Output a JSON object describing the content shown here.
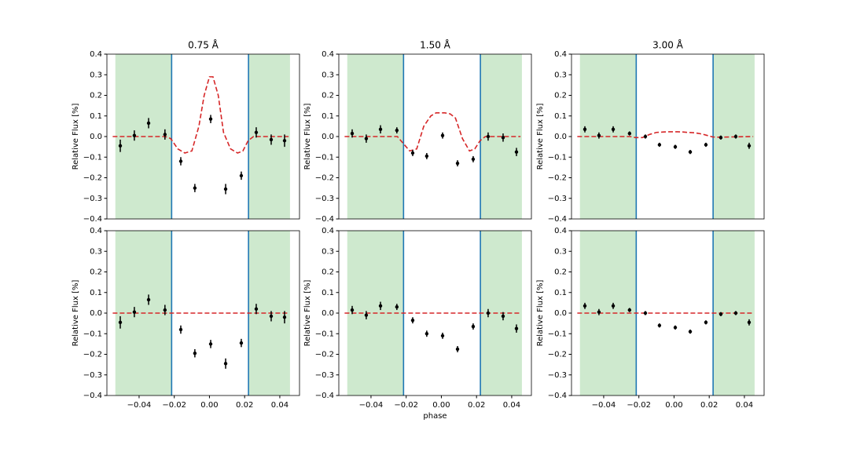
{
  "chart_data": [
    {
      "type": "errorbar",
      "title": "0.75 Å",
      "ylabel": "Relative Flux [%]",
      "xlim": [
        -0.0583,
        0.0512
      ],
      "ylim": [
        -0.4,
        0.4
      ],
      "yticks": [
        {
          "value": -0.4,
          "label": "−0.4"
        },
        {
          "value": -0.3,
          "label": "−0.3"
        },
        {
          "value": -0.2,
          "label": "−0.2"
        },
        {
          "value": -0.1,
          "label": "−0.1"
        },
        {
          "value": 0,
          "label": "0.0"
        },
        0.1,
        0.2,
        0.3,
        0.4
      ],
      "regions": [
        [
          -0.0535,
          -0.0215
        ],
        [
          0.0222,
          0.0458
        ]
      ],
      "region_color": "#2ca02c",
      "vlines": [
        -0.0215,
        0.0222
      ],
      "vline_color": "#1f77b4",
      "points": {
        "color": "#000000",
        "x": [
          -0.0507,
          -0.0427,
          -0.0346,
          -0.0253,
          -0.0163,
          -0.0083,
          0.0007,
          0.0092,
          0.0181,
          0.0266,
          0.0351,
          0.0427
        ],
        "values": [
          -0.045,
          0.005,
          0.065,
          0.01,
          -0.12,
          -0.25,
          0.085,
          -0.255,
          -0.19,
          0.02,
          -0.015,
          -0.02
        ],
        "errors": [
          0.03,
          0.025,
          0.025,
          0.025,
          0.02,
          0.02,
          0.02,
          0.025,
          0.02,
          0.025,
          0.025,
          0.03
        ]
      },
      "model": {
        "color": "#d62728",
        "x": [
          -0.055,
          -0.025,
          -0.022,
          -0.018,
          -0.014,
          -0.01,
          -0.006,
          -0.003,
          0.0,
          0.002,
          0.005,
          0.008,
          0.012,
          0.016,
          0.019,
          0.022,
          0.025,
          0.045
        ],
        "values": [
          0,
          0,
          -0.01,
          -0.06,
          -0.08,
          -0.07,
          0.05,
          0.2,
          0.29,
          0.29,
          0.2,
          0.02,
          -0.06,
          -0.08,
          -0.07,
          -0.02,
          0,
          0
        ]
      }
    },
    {
      "type": "errorbar",
      "title": "1.50 Å",
      "ylabel": "Relative Flux [%]",
      "xlim": [
        -0.0583,
        0.0512
      ],
      "ylim": [
        -0.4,
        0.4
      ],
      "yticks": [
        {
          "value": -0.4,
          "label": "−0.4"
        },
        {
          "value": -0.3,
          "label": "−0.3"
        },
        {
          "value": -0.2,
          "label": "−0.2"
        },
        {
          "value": -0.1,
          "label": "−0.1"
        },
        {
          "value": 0,
          "label": "0.0"
        },
        0.1,
        0.2,
        0.3,
        0.4
      ],
      "regions": [
        [
          -0.0535,
          -0.0215
        ],
        [
          0.0222,
          0.0458
        ]
      ],
      "region_color": "#2ca02c",
      "vlines": [
        -0.0215,
        0.0222
      ],
      "vline_color": "#1f77b4",
      "points": {
        "color": "#000000",
        "x": [
          -0.0507,
          -0.0427,
          -0.0346,
          -0.0253,
          -0.0163,
          -0.0083,
          0.0007,
          0.0092,
          0.0181,
          0.0266,
          0.0351,
          0.0427
        ],
        "values": [
          0.015,
          -0.01,
          0.035,
          0.03,
          -0.08,
          -0.095,
          0.005,
          -0.13,
          -0.11,
          0.0,
          -0.005,
          -0.075
        ],
        "errors": [
          0.02,
          0.02,
          0.02,
          0.015,
          0.015,
          0.015,
          0.015,
          0.015,
          0.015,
          0.02,
          0.02,
          0.02
        ]
      },
      "model": {
        "color": "#d62728",
        "x": [
          -0.055,
          -0.025,
          -0.022,
          -0.018,
          -0.014,
          -0.01,
          -0.006,
          -0.003,
          0.0,
          0.002,
          0.005,
          0.008,
          0.012,
          0.016,
          0.019,
          0.022,
          0.025,
          0.045
        ],
        "values": [
          0,
          0,
          -0.03,
          -0.07,
          -0.06,
          0.05,
          0.1,
          0.115,
          0.115,
          0.115,
          0.11,
          0.09,
          -0.01,
          -0.07,
          -0.06,
          -0.02,
          0,
          0
        ]
      }
    },
    {
      "type": "errorbar",
      "title": "3.00 Å",
      "ylabel": "Relative Flux [%]",
      "xlim": [
        -0.0583,
        0.0512
      ],
      "ylim": [
        -0.4,
        0.4
      ],
      "yticks": [
        {
          "value": -0.4,
          "label": "−0.4"
        },
        {
          "value": -0.3,
          "label": "−0.3"
        },
        {
          "value": -0.2,
          "label": "−0.2"
        },
        {
          "value": -0.1,
          "label": "−0.1"
        },
        {
          "value": 0,
          "label": "0.0"
        },
        0.1,
        0.2,
        0.3,
        0.4
      ],
      "regions": [
        [
          -0.0535,
          -0.0215
        ],
        [
          0.0222,
          0.0458
        ]
      ],
      "region_color": "#2ca02c",
      "vlines": [
        -0.0215,
        0.0222
      ],
      "vline_color": "#1f77b4",
      "points": {
        "color": "#000000",
        "x": [
          -0.0507,
          -0.0427,
          -0.0346,
          -0.0253,
          -0.0163,
          -0.0083,
          0.0007,
          0.0092,
          0.0181,
          0.0266,
          0.0351,
          0.0427
        ],
        "values": [
          0.035,
          0.005,
          0.035,
          0.015,
          0.0,
          -0.04,
          -0.05,
          -0.075,
          -0.04,
          -0.005,
          0.0,
          -0.045
        ],
        "errors": [
          0.015,
          0.015,
          0.015,
          0.01,
          0.01,
          0.01,
          0.01,
          0.01,
          0.01,
          0.01,
          0.01,
          0.015
        ]
      },
      "model": {
        "color": "#d62728",
        "x": [
          -0.055,
          -0.025,
          -0.022,
          -0.018,
          -0.014,
          -0.01,
          -0.006,
          -0.003,
          0.0,
          0.002,
          0.005,
          0.008,
          0.012,
          0.016,
          0.019,
          0.022,
          0.025,
          0.045
        ],
        "values": [
          0,
          0,
          -0.005,
          -0.005,
          0.01,
          0.02,
          0.022,
          0.023,
          0.023,
          0.023,
          0.022,
          0.02,
          0.018,
          0.012,
          0.005,
          -0.002,
          -0.003,
          0
        ]
      }
    },
    {
      "type": "errorbar",
      "ylabel": "Relative Flux [%]",
      "xlim": [
        -0.0583,
        0.0512
      ],
      "ylim": [
        -0.4,
        0.4
      ],
      "xticks": [
        {
          "value": -0.04,
          "label": "−0.04"
        },
        {
          "value": -0.02,
          "label": "−0.02"
        },
        {
          "value": 0,
          "label": "0.00"
        },
        0.02,
        0.04
      ],
      "yticks": [
        {
          "value": -0.4,
          "label": "−0.4"
        },
        {
          "value": -0.3,
          "label": "−0.3"
        },
        {
          "value": -0.2,
          "label": "−0.2"
        },
        {
          "value": -0.1,
          "label": "−0.1"
        },
        {
          "value": 0,
          "label": "0.0"
        },
        0.1,
        0.2,
        0.3,
        0.4
      ],
      "regions": [
        [
          -0.0535,
          -0.0215
        ],
        [
          0.0222,
          0.0458
        ]
      ],
      "region_color": "#2ca02c",
      "vlines": [
        -0.0215,
        0.0222
      ],
      "vline_color": "#1f77b4",
      "points": {
        "color": "#000000",
        "x": [
          -0.0507,
          -0.0427,
          -0.0346,
          -0.0253,
          -0.0163,
          -0.0083,
          0.0007,
          0.0092,
          0.0181,
          0.0266,
          0.0351,
          0.0427
        ],
        "values": [
          -0.045,
          0.005,
          0.065,
          0.015,
          -0.08,
          -0.195,
          -0.15,
          -0.245,
          -0.145,
          0.02,
          -0.015,
          -0.02
        ],
        "errors": [
          0.03,
          0.025,
          0.025,
          0.025,
          0.02,
          0.02,
          0.02,
          0.025,
          0.02,
          0.025,
          0.025,
          0.03
        ]
      },
      "model": {
        "color": "#d62728",
        "x": [
          -0.055,
          0.045
        ],
        "values": [
          0,
          0
        ]
      }
    },
    {
      "type": "errorbar",
      "ylabel": "Relative Flux [%]",
      "xlabel": "phase",
      "xlim": [
        -0.0583,
        0.0512
      ],
      "ylim": [
        -0.4,
        0.4
      ],
      "xticks": [
        {
          "value": -0.04,
          "label": "−0.04"
        },
        {
          "value": -0.02,
          "label": "−0.02"
        },
        {
          "value": 0,
          "label": "0.00"
        },
        0.02,
        0.04
      ],
      "yticks": [
        {
          "value": -0.4,
          "label": "−0.4"
        },
        {
          "value": -0.3,
          "label": "−0.3"
        },
        {
          "value": -0.2,
          "label": "−0.2"
        },
        {
          "value": -0.1,
          "label": "−0.1"
        },
        {
          "value": 0,
          "label": "0.0"
        },
        0.1,
        0.2,
        0.3,
        0.4
      ],
      "regions": [
        [
          -0.0535,
          -0.0215
        ],
        [
          0.0222,
          0.0458
        ]
      ],
      "region_color": "#2ca02c",
      "vlines": [
        -0.0215,
        0.0222
      ],
      "vline_color": "#1f77b4",
      "points": {
        "color": "#000000",
        "x": [
          -0.0507,
          -0.0427,
          -0.0346,
          -0.0253,
          -0.0163,
          -0.0083,
          0.0007,
          0.0092,
          0.0181,
          0.0266,
          0.0351,
          0.0427
        ],
        "values": [
          0.015,
          -0.01,
          0.035,
          0.03,
          -0.035,
          -0.1,
          -0.11,
          -0.175,
          -0.065,
          0.0,
          -0.015,
          -0.075
        ],
        "errors": [
          0.02,
          0.02,
          0.02,
          0.015,
          0.015,
          0.015,
          0.015,
          0.015,
          0.015,
          0.02,
          0.02,
          0.02
        ]
      },
      "model": {
        "color": "#d62728",
        "x": [
          -0.055,
          0.045
        ],
        "values": [
          0,
          0
        ]
      }
    },
    {
      "type": "errorbar",
      "ylabel": "Relative Flux [%]",
      "xlim": [
        -0.0583,
        0.0512
      ],
      "ylim": [
        -0.4,
        0.4
      ],
      "xticks": [
        {
          "value": -0.04,
          "label": "−0.04"
        },
        {
          "value": -0.02,
          "label": "−0.02"
        },
        {
          "value": 0,
          "label": "0.00"
        },
        0.02,
        0.04
      ],
      "yticks": [
        {
          "value": -0.4,
          "label": "−0.4"
        },
        {
          "value": -0.3,
          "label": "−0.3"
        },
        {
          "value": -0.2,
          "label": "−0.2"
        },
        {
          "value": -0.1,
          "label": "−0.1"
        },
        {
          "value": 0,
          "label": "0.0"
        },
        0.1,
        0.2,
        0.3,
        0.4
      ],
      "regions": [
        [
          -0.0535,
          -0.0215
        ],
        [
          0.0222,
          0.0458
        ]
      ],
      "region_color": "#2ca02c",
      "vlines": [
        -0.0215,
        0.0222
      ],
      "vline_color": "#1f77b4",
      "points": {
        "color": "#000000",
        "x": [
          -0.0507,
          -0.0427,
          -0.0346,
          -0.0253,
          -0.0163,
          -0.0083,
          0.0007,
          0.0092,
          0.0181,
          0.0266,
          0.0351,
          0.0427
        ],
        "values": [
          0.035,
          0.005,
          0.035,
          0.015,
          0.0,
          -0.06,
          -0.07,
          -0.09,
          -0.045,
          -0.005,
          0.0,
          -0.045
        ],
        "errors": [
          0.015,
          0.015,
          0.015,
          0.01,
          0.01,
          0.01,
          0.01,
          0.01,
          0.01,
          0.01,
          0.01,
          0.015
        ]
      },
      "model": {
        "color": "#d62728",
        "x": [
          -0.055,
          0.045
        ],
        "values": [
          0,
          0
        ]
      }
    }
  ]
}
